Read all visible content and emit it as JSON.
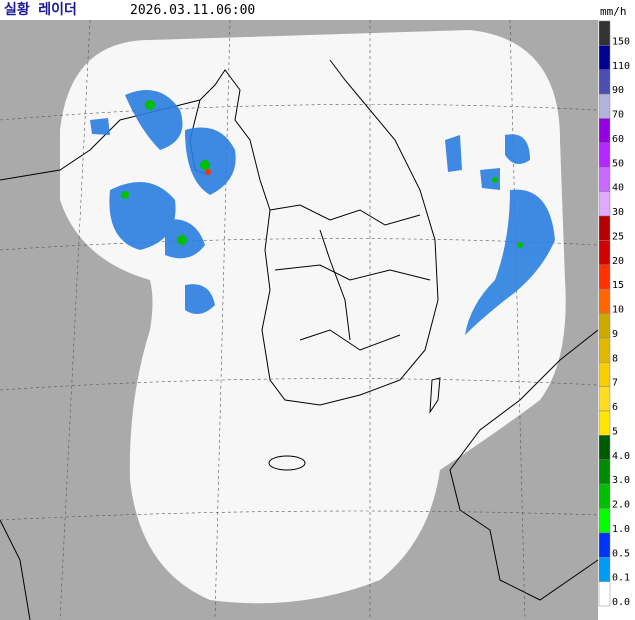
{
  "header": {
    "title": "실황 레이더",
    "timestamp": "2026.03.11.06:00",
    "unit": "mm/h"
  },
  "legend": {
    "items": [
      {
        "label": "150",
        "color": "#333333"
      },
      {
        "label": "110",
        "color": "#000390"
      },
      {
        "label": "90",
        "color": "#4c4eb1"
      },
      {
        "label": "70",
        "color": "#b3b4de"
      },
      {
        "label": "60",
        "color": "#9300e4"
      },
      {
        "label": "50",
        "color": "#b329ff"
      },
      {
        "label": "40",
        "color": "#c969ff"
      },
      {
        "label": "30",
        "color": "#e0a9ff"
      },
      {
        "label": "25",
        "color": "#b40000"
      },
      {
        "label": "20",
        "color": "#d20000"
      },
      {
        "label": "15",
        "color": "#ff3200"
      },
      {
        "label": "10",
        "color": "#ff6600"
      },
      {
        "label": "9",
        "color": "#ccaa00"
      },
      {
        "label": "8",
        "color": "#e0b900"
      },
      {
        "label": "7",
        "color": "#f9cd00"
      },
      {
        "label": "6",
        "color": "#ffdc1f"
      },
      {
        "label": "5",
        "color": "#ffe600"
      },
      {
        "label": "4.0",
        "color": "#005a00"
      },
      {
        "label": "3.0",
        "color": "#008c00"
      },
      {
        "label": "2.0",
        "color": "#00be00"
      },
      {
        "label": "1.0",
        "color": "#00ff00"
      },
      {
        "label": "0.5",
        "color": "#0033f5"
      },
      {
        "label": "0.1",
        "color": "#009bf5"
      },
      {
        "label": "0.0",
        "color": "#ffffff"
      }
    ]
  }
}
